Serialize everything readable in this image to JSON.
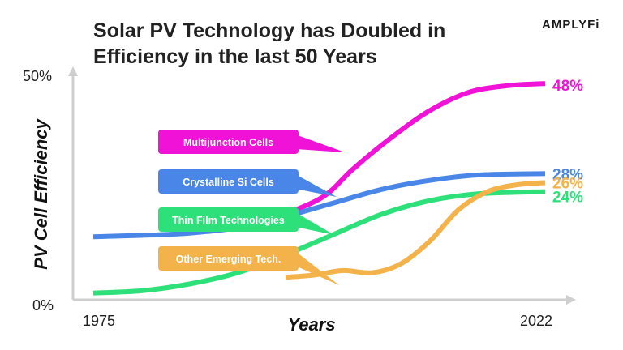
{
  "brand": "AMPLYFi",
  "chart_data": {
    "type": "line",
    "title_lines": [
      "Solar PV Technology has Doubled in",
      "Efficiency in the last 50 Years"
    ],
    "xlabel": "Years",
    "ylabel": "PV Cell Efficiency",
    "x_ticks": [
      "1975",
      "2022"
    ],
    "y_ticks": [
      "50%",
      "0%"
    ],
    "xlim": [
      1975,
      2022
    ],
    "ylim": [
      0,
      50
    ],
    "colors": {
      "multijunction": "#f012d6",
      "crystalline": "#4a86e8",
      "thin_film": "#2ee07a",
      "emerging": "#f4b24a"
    },
    "series": [
      {
        "name": "Multijunction Cells",
        "color": "#f012d6",
        "end_label": "48%",
        "x": [
          1992,
          1995,
          1999,
          2002,
          2006,
          2010,
          2014,
          2018,
          2022
        ],
        "y": [
          16,
          19,
          23,
          29,
          36,
          42,
          46,
          47.5,
          48
        ]
      },
      {
        "name": "Crystalline Si Cells",
        "color": "#4a86e8",
        "end_label": "28%",
        "x": [
          1975,
          1980,
          1985,
          1990,
          1995,
          2000,
          2005,
          2010,
          2015,
          2022
        ],
        "y": [
          14,
          14.3,
          14.8,
          16,
          18.5,
          21.5,
          24.5,
          26.5,
          27.7,
          28
        ]
      },
      {
        "name": "Thin Film Technologies",
        "color": "#2ee07a",
        "end_label": "24%",
        "x": [
          1975,
          1980,
          1985,
          1990,
          1995,
          2000,
          2005,
          2010,
          2015,
          2022
        ],
        "y": [
          1.5,
          2,
          3.5,
          6,
          10,
          14.5,
          19,
          22,
          23.5,
          24
        ]
      },
      {
        "name": "Other Emerging Tech.",
        "color": "#f4b24a",
        "end_label": "26%",
        "x": [
          1995,
          1998,
          2001,
          2004,
          2007,
          2010,
          2013,
          2016,
          2019,
          2022
        ],
        "y": [
          5,
          5.5,
          6.5,
          6,
          8,
          13,
          20,
          24,
          25.5,
          26
        ]
      }
    ]
  }
}
